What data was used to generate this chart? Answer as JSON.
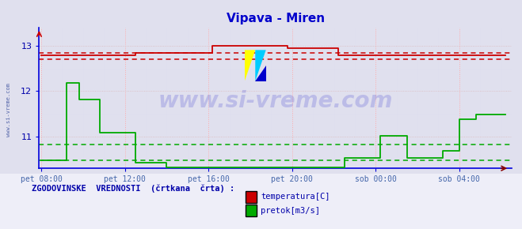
{
  "title": "Vipava - Miren",
  "title_color": "#0000cc",
  "bg_color": "#e0e0ee",
  "plot_bg_color": "#e0e0ee",
  "legend_bg_color": "#e8e8f0",
  "x_label_color": "#4466aa",
  "y_label_color": "#0000aa",
  "axis_color": "#0000dd",
  "grid_color_v": "#ffaaaa",
  "grid_color_h": "#ddbbbb",
  "grid_color_v_minor": "#ddddee",
  "x_ticks_labels": [
    "pet 08:00",
    "pet 12:00",
    "pet 16:00",
    "pet 20:00",
    "sob 00:00",
    "sob 04:00"
  ],
  "x_ticks_pos": [
    0,
    4,
    8,
    12,
    16,
    20
  ],
  "y_ticks": [
    11,
    12,
    13
  ],
  "ylim": [
    10.3,
    13.4
  ],
  "xlim": [
    -0.1,
    22.5
  ],
  "temp_color": "#cc0000",
  "pretok_color": "#00aa00",
  "temp_data_x": [
    0,
    4.5,
    4.5,
    8.2,
    8.2,
    11.8,
    11.8,
    14.2,
    14.2,
    22.2
  ],
  "temp_data_y": [
    12.78,
    12.78,
    12.84,
    12.84,
    13.0,
    13.0,
    12.94,
    12.94,
    12.78,
    12.78
  ],
  "temp_hist_upper": 12.84,
  "temp_hist_lower": 12.7,
  "pretok_data_x": [
    0,
    1.2,
    1.2,
    1.8,
    1.8,
    2.8,
    2.8,
    4.5,
    4.5,
    6.0,
    6.0,
    14.5,
    14.5,
    16.2,
    16.2,
    17.5,
    17.5,
    19.2,
    19.2,
    20.0,
    20.0,
    20.8,
    20.8,
    22.2
  ],
  "pretok_data_y": [
    10.48,
    10.48,
    12.18,
    12.18,
    11.82,
    11.82,
    11.08,
    11.08,
    10.42,
    10.42,
    10.32,
    10.32,
    10.52,
    10.52,
    11.02,
    11.02,
    10.52,
    10.52,
    10.68,
    10.68,
    11.38,
    11.38,
    11.48,
    11.48
  ],
  "pretok_hist_upper": 10.82,
  "pretok_hist_lower": 10.48,
  "watermark_text": "www.si-vreme.com",
  "watermark_color": "#1a1acc",
  "watermark_alpha": 0.18,
  "legend_label": "ZGODOVINSKE  VREDNOSTI  (črtkana  črta) :",
  "legend_temp": "temperatura[C]",
  "legend_pretok": "pretok[m3/s]",
  "legend_color": "#0000aa",
  "sidebar_text": "www.si-vreme.com",
  "sidebar_color": "#5566aa"
}
